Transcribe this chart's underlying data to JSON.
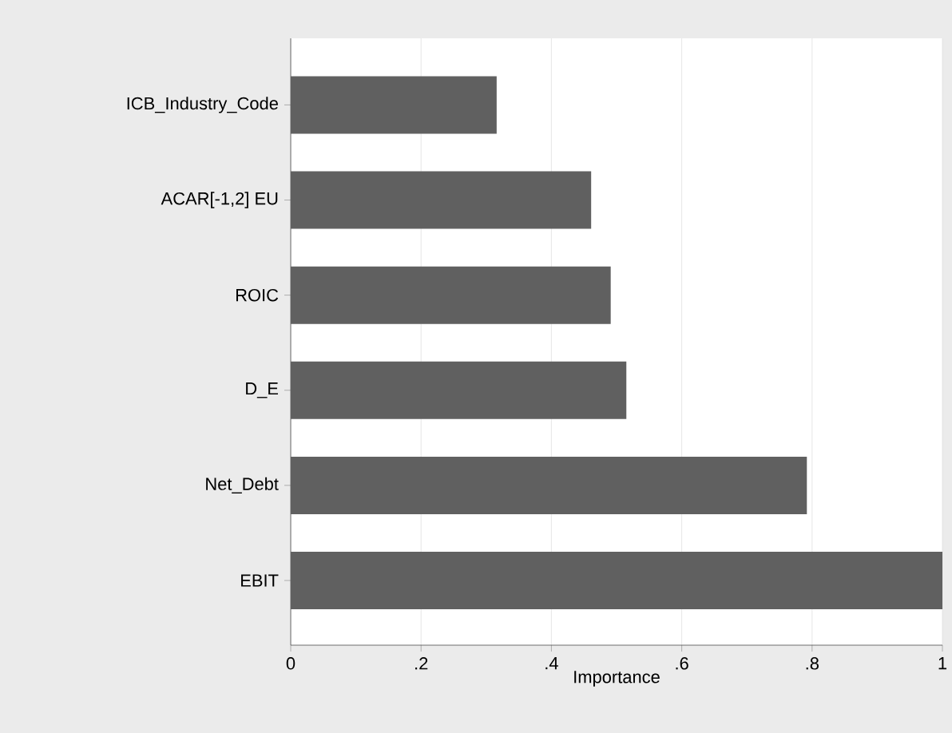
{
  "chart_data": {
    "type": "bar",
    "orientation": "horizontal",
    "xlabel": "Importance",
    "categories": [
      "ICB_Industry_Code",
      "ACAR[-1,2] EU",
      "ROIC",
      "D_E",
      "Net_Debt",
      "EBIT"
    ],
    "values": [
      0.316,
      0.461,
      0.491,
      0.515,
      0.792,
      1.0
    ],
    "color": "#606060",
    "xlim": [
      0,
      1
    ],
    "xticks": [
      0,
      {
        "value": 0.2,
        "label": ".2"
      },
      {
        "value": 0.4,
        "label": ".4"
      },
      {
        "value": 0.6,
        "label": ".6"
      },
      {
        "value": 0.8,
        "label": ".8"
      },
      1
    ],
    "grid": "x"
  }
}
